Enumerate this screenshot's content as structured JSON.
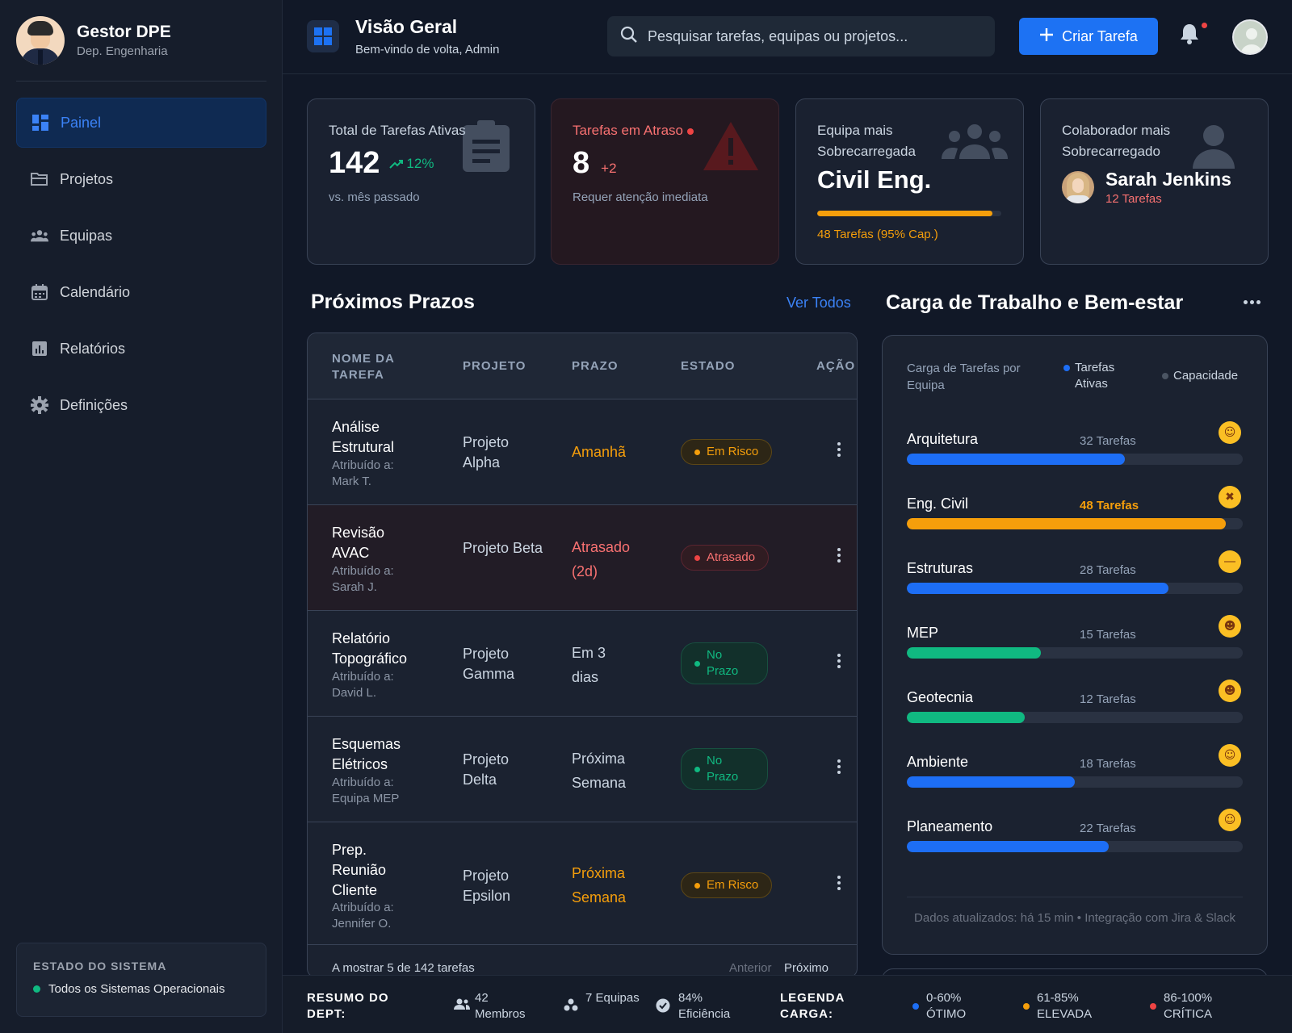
{
  "sidebar": {
    "profile": {
      "name": "Gestor DPE",
      "dept": "Dep. Engenharia"
    },
    "items": [
      {
        "label": "Painel",
        "icon": "dashboard-icon",
        "active": true
      },
      {
        "label": "Projetos",
        "icon": "folder-icon"
      },
      {
        "label": "Equipas",
        "icon": "team-icon"
      },
      {
        "label": "Calendário",
        "icon": "calendar-icon"
      },
      {
        "label": "Relatórios",
        "icon": "report-icon"
      },
      {
        "label": "Definições",
        "icon": "gear-icon"
      }
    ],
    "system": {
      "title": "ESTADO DO SISTEMA",
      "status": "Todos os Sistemas Operacionais"
    }
  },
  "header": {
    "title": "Visão Geral",
    "subtitle": "Bem-vindo de volta, Admin",
    "search_placeholder": "Pesquisar tarefas, equipas ou projetos...",
    "create_label": "Criar Tarefa"
  },
  "cards": {
    "active": {
      "label": "Total de Tarefas Ativas",
      "value": "142",
      "trend": "12%",
      "note": "vs. mês passado"
    },
    "overdue": {
      "label": "Tarefas em Atraso",
      "value": "8",
      "delta": "+2",
      "note": "Requer atenção imediata"
    },
    "team": {
      "label": "Equipa mais Sobrecarregada",
      "value": "Civil Eng.",
      "progress": 0.95,
      "note": "48 Tarefas (95% Cap.)"
    },
    "person": {
      "label": "Colaborador mais Sobrecarregado",
      "name": "Sarah Jenkins",
      "tasks": "12 Tarefas"
    }
  },
  "deadlines": {
    "title": "Próximos Prazos",
    "view_all": "Ver Todos",
    "columns": [
      "NOME DA TAREFA",
      "PROJETO",
      "PRAZO",
      "ESTADO",
      "AÇÃO"
    ],
    "rows": [
      {
        "name": "Análise Estrutural",
        "assign": "Atribuído a: Mark T.",
        "project": "Projeto Alpha",
        "due": "Amanhã",
        "status": "Em Risco"
      },
      {
        "name": "Revisão AVAC",
        "assign": "Atribuído a: Sarah J.",
        "project": "Projeto Beta",
        "due": "Atrasado (2d)",
        "status": "Atrasado"
      },
      {
        "name": "Relatório Topográfico",
        "assign": "Atribuído a: David L.",
        "project": "Projeto Gamma",
        "due": "Em 3 dias",
        "status": "No Prazo"
      },
      {
        "name": "Esquemas Elétricos",
        "assign": "Atribuído a: Equipa MEP",
        "project": "Projeto Delta",
        "due": "Próxima Semana",
        "status": "No Prazo"
      },
      {
        "name": "Prep. Reunião Cliente",
        "assign": "Atribuído a: Jennifer O.",
        "project": "Projeto Epsilon",
        "due": "Próxima Semana",
        "status": "Em Risco"
      }
    ],
    "footer": "A mostrar 5 de 142 tarefas",
    "prev": "Anterior",
    "next": "Próximo"
  },
  "workload": {
    "title": "Carga de Trabalho e Bem-estar",
    "subtitle": "Carga de Tarefas por Equipa",
    "legend_active": "Tarefas Ativas",
    "legend_capacity": "Capacidade",
    "teams": [
      {
        "name": "Arquitetura",
        "count": "32 Tarefas",
        "fill": 0.65,
        "color": "#1d6ef5",
        "emoji": "slight-smile-icon"
      },
      {
        "name": "Eng. Civil",
        "count": "48 Tarefas",
        "fill": 0.95,
        "color": "#f59e0b",
        "emoji": "tired-face-icon"
      },
      {
        "name": "Estruturas",
        "count": "28 Tarefas",
        "fill": 0.78,
        "color": "#1d6ef5",
        "emoji": "neutral-face-icon"
      },
      {
        "name": "MEP",
        "count": "15 Tarefas",
        "fill": 0.4,
        "color": "#10b981",
        "emoji": "grin-icon"
      },
      {
        "name": "Geotecnia",
        "count": "12 Tarefas",
        "fill": 0.35,
        "color": "#10b981",
        "emoji": "grin-icon"
      },
      {
        "name": "Ambiente",
        "count": "18 Tarefas",
        "fill": 0.5,
        "color": "#1d6ef5",
        "emoji": "slight-smile-icon"
      },
      {
        "name": "Planeamento",
        "count": "22 Tarefas",
        "fill": 0.6,
        "color": "#1d6ef5",
        "emoji": "slight-smile-icon"
      }
    ],
    "footnote": "Dados atualizados: há 15 min • Integração com Jira & Slack"
  },
  "footer": {
    "summary": "RESUMO DO DEPT:",
    "members": "42 Membros",
    "teams": "7 Equipas",
    "efficiency": "84% Eficiência",
    "legend": "LEGENDA CARGA:",
    "l1": "0-60% ÓTIMO",
    "l2": "61-85% ELEVADA",
    "l3": "86-100% CRÍTICA"
  }
}
